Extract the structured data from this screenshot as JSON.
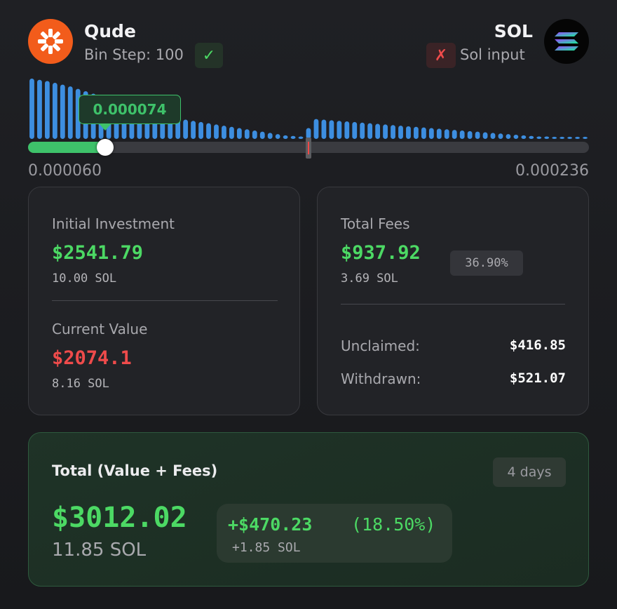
{
  "header": {
    "pair_name": "Qude",
    "bin_step": "Bin Step: 100",
    "bin_step_ok_icon": "check-icon",
    "token_name": "SOL",
    "sol_input_icon": "x-icon",
    "sol_input_label": "Sol input"
  },
  "chart": {
    "selected_price": "0.000074",
    "range_min": "0.000060",
    "range_max": "0.000236",
    "selected_fraction": 0.138,
    "current_price_fraction": 0.5,
    "bin_heights": [
      1.0,
      0.98,
      0.96,
      0.93,
      0.9,
      0.87,
      0.83,
      0.79,
      0.75,
      0.71,
      0.67,
      0.63,
      0.59,
      0.55,
      0.51,
      0.48,
      0.44,
      0.41,
      0.38,
      0.35,
      0.32,
      0.3,
      0.28,
      0.26,
      0.24,
      0.22,
      0.2,
      0.18,
      0.16,
      0.14,
      0.12,
      0.1,
      0.08,
      0.06,
      0.05,
      0.04,
      0.18,
      0.33,
      0.32,
      0.31,
      0.3,
      0.29,
      0.28,
      0.27,
      0.26,
      0.25,
      0.24,
      0.23,
      0.22,
      0.21,
      0.2,
      0.19,
      0.18,
      0.17,
      0.16,
      0.15,
      0.14,
      0.13,
      0.12,
      0.11,
      0.1,
      0.09,
      0.08,
      0.07,
      0.06,
      0.05,
      0.04,
      0.04,
      0.03,
      0.03,
      0.02,
      0.02,
      0.02
    ],
    "bar_color": "#3d8ee0",
    "fill_color": "#3ec26a"
  },
  "initial": {
    "label": "Initial Investment",
    "usd": "$2541.79",
    "sol": "10.00 SOL"
  },
  "current": {
    "label": "Current Value",
    "usd": "$2074.1",
    "sol": "8.16 SOL"
  },
  "fees": {
    "label": "Total Fees",
    "usd": "$937.92",
    "sol": "3.69 SOL",
    "percent": "36.90%",
    "unclaimed_label": "Unclaimed:",
    "unclaimed_value": "$416.85",
    "withdrawn_label": "Withdrawn:",
    "withdrawn_value": "$521.07"
  },
  "total": {
    "title": "Total (Value + Fees)",
    "duration": "4 days",
    "usd": "$3012.02",
    "sol": "11.85 SOL",
    "gain_usd": "+$470.23",
    "gain_pct": "(18.50%)",
    "gain_sol": "+1.85 SOL"
  },
  "colors": {
    "positive": "#4cd964",
    "negative": "#ef4b4b",
    "brand_orange": "#f25c1b"
  }
}
